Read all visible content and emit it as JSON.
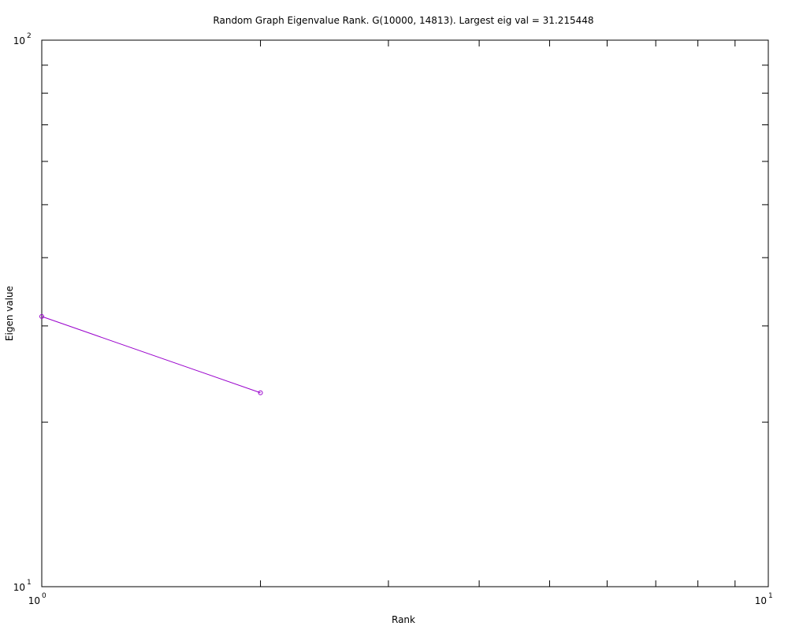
{
  "chart_data": {
    "type": "line",
    "title": "Random Graph Eigenvalue Rank. G(10000, 14813). Largest eig val = 31.215448",
    "xlabel": "Rank",
    "ylabel": "Eigen value",
    "x_scale": "log",
    "y_scale": "log",
    "xlim": [
      1,
      10
    ],
    "ylim": [
      10,
      100
    ],
    "grid": false,
    "legend": "none",
    "x_tick_labels": [
      {
        "base": "10",
        "exp": "0"
      },
      {
        "base": "10",
        "exp": "1"
      }
    ],
    "y_tick_labels": [
      {
        "base": "10",
        "exp": "1"
      },
      {
        "base": "10",
        "exp": "2"
      }
    ],
    "series": [
      {
        "color": "#9900cc",
        "marker": "circle",
        "x": [
          1,
          2
        ],
        "y": [
          31.215448,
          22.64
        ]
      }
    ]
  }
}
